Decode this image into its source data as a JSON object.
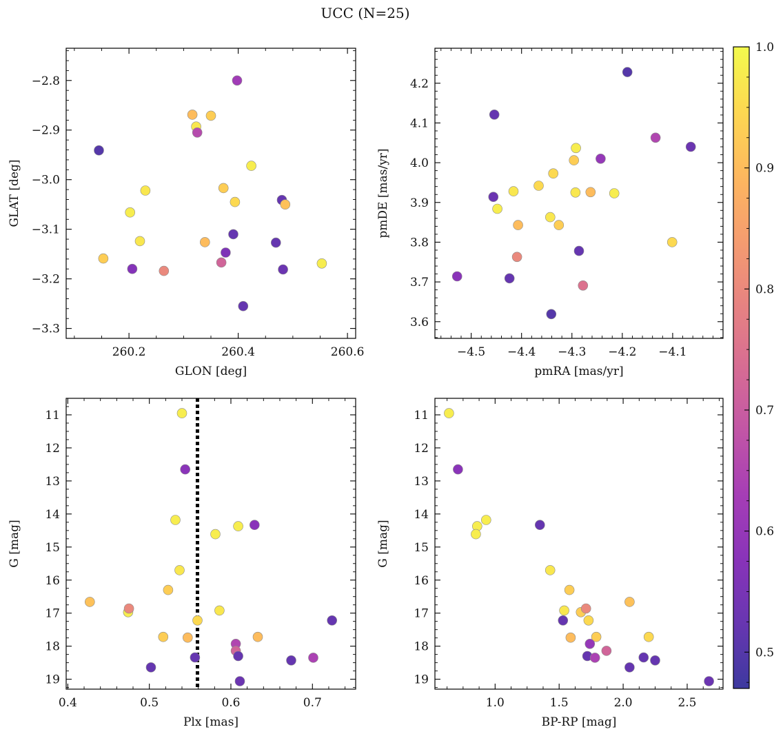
{
  "figure": {
    "title": "UCC (N=25)"
  },
  "colorbar": {
    "min": 0.47,
    "max": 1.0,
    "ticks": [
      0.5,
      0.6,
      0.7,
      0.8,
      0.9,
      1.0
    ],
    "tick_labels": [
      "0.5",
      "0.6",
      "0.7",
      "0.8",
      "0.9",
      "1.0"
    ],
    "colormap": "plasma"
  },
  "chart_data": [
    {
      "type": "scatter",
      "id": "glon-glat",
      "xlabel": "GLON [deg]",
      "ylabel": "GLAT [deg]",
      "xlim": [
        260.085,
        260.615
      ],
      "ylim": [
        -3.32,
        -2.735
      ],
      "xticks": [
        260.2,
        260.4,
        260.6
      ],
      "xtick_labels": [
        "260.2",
        "260.4",
        "260.6"
      ],
      "yticks": [
        -3.3,
        -3.2,
        -3.1,
        -3.0,
        -2.9,
        -2.8
      ],
      "ytick_labels": [
        "−3.3",
        "−3.2",
        "−3.1",
        "−3.0",
        "−2.9",
        "−2.8"
      ],
      "x": [
        260.145,
        260.398,
        260.316,
        260.35,
        260.323,
        260.325,
        260.424,
        260.23,
        260.202,
        260.373,
        260.394,
        260.48,
        260.486,
        260.391,
        260.22,
        260.339,
        260.469,
        260.377,
        260.153,
        260.206,
        260.369,
        260.264,
        260.553,
        260.482,
        260.409
      ],
      "y": [
        -2.941,
        -2.8,
        -2.869,
        -2.871,
        -2.893,
        -2.905,
        -2.972,
        -3.022,
        -3.066,
        -3.017,
        -3.045,
        -3.041,
        -3.05,
        -3.11,
        -3.124,
        -3.126,
        -3.127,
        -3.147,
        -3.159,
        -3.18,
        -3.167,
        -3.184,
        -3.169,
        -3.181,
        -3.255
      ],
      "c": [
        0.5,
        0.62,
        0.9,
        0.93,
        0.97,
        0.66,
        0.98,
        0.97,
        0.98,
        0.93,
        0.95,
        0.52,
        0.91,
        0.52,
        0.97,
        0.9,
        0.52,
        0.56,
        0.93,
        0.57,
        0.72,
        0.8,
        0.98,
        0.53,
        0.52
      ]
    },
    {
      "type": "scatter",
      "id": "pm",
      "xlabel": "pmRA [mas/yr]",
      "ylabel": "pmDE [mas/yr]",
      "xlim": [
        -4.572,
        -4.0
      ],
      "ylim": [
        3.558,
        4.288
      ],
      "xticks": [
        -4.5,
        -4.4,
        -4.3,
        -4.2,
        -4.1
      ],
      "xtick_labels": [
        "−4.5",
        "−4.4",
        "−4.3",
        "−4.2",
        "−4.1"
      ],
      "yticks": [
        3.6,
        3.7,
        3.8,
        3.9,
        4.0,
        4.1,
        4.2
      ],
      "ytick_labels": [
        "3.6",
        "3.7",
        "3.8",
        "3.9",
        "4.0",
        "4.1",
        "4.2"
      ],
      "x": [
        -4.19,
        -4.454,
        -4.134,
        -4.064,
        -4.292,
        -4.243,
        -4.296,
        -4.337,
        -4.366,
        -4.416,
        -4.293,
        -4.263,
        -4.216,
        -4.456,
        -4.448,
        -4.343,
        -4.407,
        -4.326,
        -4.101,
        -4.286,
        -4.409,
        -4.528,
        -4.424,
        -4.278,
        -4.341
      ],
      "y": [
        4.228,
        4.121,
        4.063,
        4.04,
        4.037,
        4.01,
        4.006,
        3.973,
        3.942,
        3.928,
        3.925,
        3.926,
        3.923,
        3.914,
        3.884,
        3.863,
        3.843,
        3.843,
        3.8,
        3.778,
        3.763,
        3.714,
        3.709,
        3.691,
        3.619
      ],
      "c": [
        0.5,
        0.52,
        0.65,
        0.53,
        0.98,
        0.6,
        0.93,
        0.95,
        0.95,
        0.97,
        0.97,
        0.9,
        0.98,
        0.53,
        0.98,
        0.97,
        0.9,
        0.93,
        0.95,
        0.52,
        0.8,
        0.58,
        0.52,
        0.75,
        0.5
      ]
    },
    {
      "type": "scatter",
      "id": "plx-g",
      "xlabel": "Plx [mas]",
      "ylabel": "G [mag]",
      "xlim": [
        0.398,
        0.753
      ],
      "ylim": [
        19.3,
        10.5
      ],
      "y_inverted": true,
      "vline": 0.559,
      "xticks": [
        0.4,
        0.5,
        0.6,
        0.7
      ],
      "xtick_labels": [
        "0.4",
        "0.5",
        "0.6",
        "0.7"
      ],
      "yticks": [
        11,
        12,
        13,
        14,
        15,
        16,
        17,
        18,
        19
      ],
      "ytick_labels": [
        "11",
        "12",
        "13",
        "14",
        "15",
        "16",
        "17",
        "18",
        "19"
      ],
      "x": [
        0.54,
        0.544,
        0.532,
        0.629,
        0.609,
        0.581,
        0.537,
        0.523,
        0.427,
        0.474,
        0.475,
        0.586,
        0.724,
        0.559,
        0.633,
        0.517,
        0.547,
        0.606,
        0.606,
        0.556,
        0.609,
        0.674,
        0.701,
        0.502,
        0.611
      ],
      "y": [
        10.95,
        12.65,
        14.18,
        14.33,
        14.37,
        14.61,
        15.7,
        16.3,
        16.66,
        16.97,
        16.86,
        16.92,
        17.22,
        17.22,
        17.72,
        17.72,
        17.74,
        17.93,
        18.14,
        18.34,
        18.3,
        18.43,
        18.35,
        18.64,
        19.06
      ],
      "c": [
        0.98,
        0.58,
        0.98,
        0.58,
        0.98,
        0.98,
        0.97,
        0.93,
        0.91,
        0.98,
        0.8,
        0.97,
        0.52,
        0.95,
        0.9,
        0.93,
        0.9,
        0.65,
        0.72,
        0.52,
        0.52,
        0.52,
        0.64,
        0.52,
        0.53
      ]
    },
    {
      "type": "scatter",
      "id": "cmd",
      "xlabel": "BP-RP [mag]",
      "ylabel": "G [mag]",
      "xlim": [
        0.53,
        2.78
      ],
      "ylim": [
        19.3,
        10.5
      ],
      "y_inverted": true,
      "xticks": [
        1.0,
        1.5,
        2.0,
        2.5
      ],
      "xtick_labels": [
        "1.0",
        "1.5",
        "2.0",
        "2.5"
      ],
      "yticks": [
        11,
        12,
        13,
        14,
        15,
        16,
        17,
        18,
        19
      ],
      "ytick_labels": [
        "11",
        "12",
        "13",
        "14",
        "15",
        "16",
        "17",
        "18",
        "19"
      ],
      "x": [
        0.64,
        0.71,
        0.93,
        0.86,
        0.85,
        1.35,
        1.43,
        1.58,
        2.05,
        1.67,
        1.71,
        1.54,
        1.53,
        1.73,
        2.2,
        1.79,
        1.59,
        1.74,
        1.87,
        1.72,
        1.78,
        2.16,
        2.25,
        2.05,
        2.67
      ],
      "y": [
        10.95,
        12.65,
        14.18,
        14.37,
        14.61,
        14.33,
        15.7,
        16.3,
        16.66,
        16.97,
        16.86,
        16.92,
        17.22,
        17.22,
        17.72,
        17.72,
        17.74,
        17.93,
        18.14,
        18.3,
        18.35,
        18.34,
        18.43,
        18.64,
        19.06
      ],
      "c": [
        0.98,
        0.58,
        0.98,
        0.98,
        0.98,
        0.52,
        0.97,
        0.93,
        0.91,
        0.93,
        0.8,
        0.97,
        0.52,
        0.95,
        0.95,
        0.93,
        0.9,
        0.6,
        0.72,
        0.52,
        0.64,
        0.52,
        0.52,
        0.52,
        0.53
      ]
    }
  ]
}
